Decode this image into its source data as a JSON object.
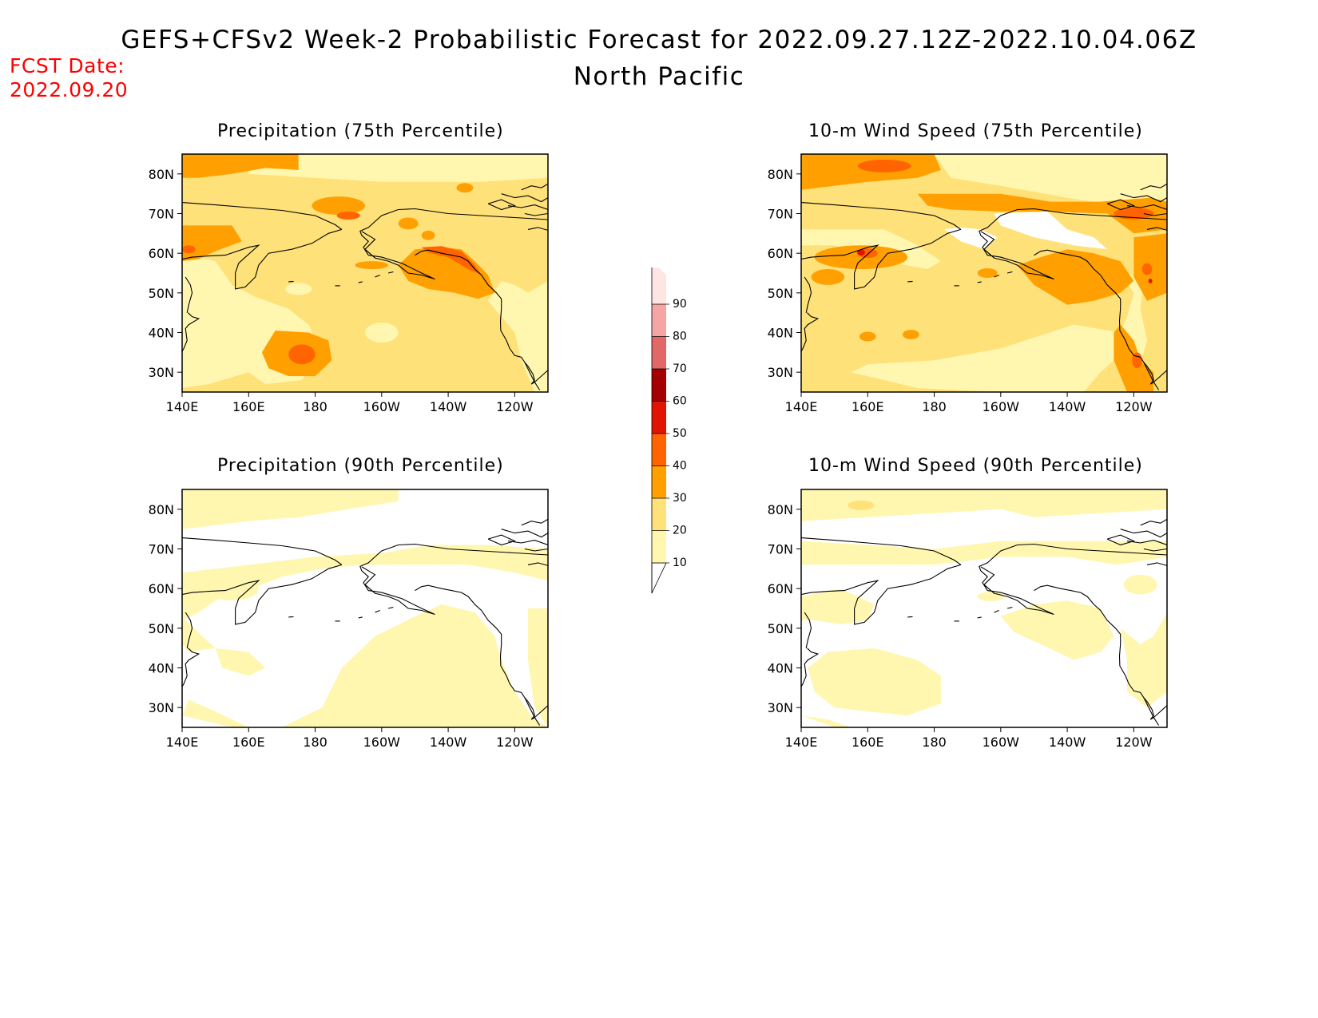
{
  "header": {
    "title": "GEFS+CFSv2 Week-2 Probabilistic Forecast for 2022.09.27.12Z-2022.10.04.06Z",
    "region": "North Pacific",
    "fcst_label": "FCST Date:",
    "fcst_date": "2022.09.20"
  },
  "panels": [
    {
      "title": "Precipitation (75th Percentile)"
    },
    {
      "title": "10-m Wind Speed (75th Percentile)"
    },
    {
      "title": "Precipitation (90th Percentile)"
    },
    {
      "title": "10-m Wind Speed (90th Percentile)"
    }
  ],
  "axes": {
    "lon_labels": [
      "140E",
      "160E",
      "180",
      "160W",
      "140W",
      "120W"
    ],
    "lat_labels": [
      "80N",
      "70N",
      "60N",
      "50N",
      "40N",
      "30N"
    ]
  },
  "colorbar": {
    "levels": [
      {
        "value": "10",
        "color": "#fff7b0"
      },
      {
        "value": "20",
        "color": "#ffe17a"
      },
      {
        "value": "30",
        "color": "#ffa000"
      },
      {
        "value": "40",
        "color": "#ff6400"
      },
      {
        "value": "50",
        "color": "#e11400"
      },
      {
        "value": "60",
        "color": "#a50000"
      },
      {
        "value": "70",
        "color": "#e26868"
      },
      {
        "value": "80",
        "color": "#f6a5a5"
      },
      {
        "value": "90",
        "color": "#ffe4e4"
      }
    ]
  }
}
